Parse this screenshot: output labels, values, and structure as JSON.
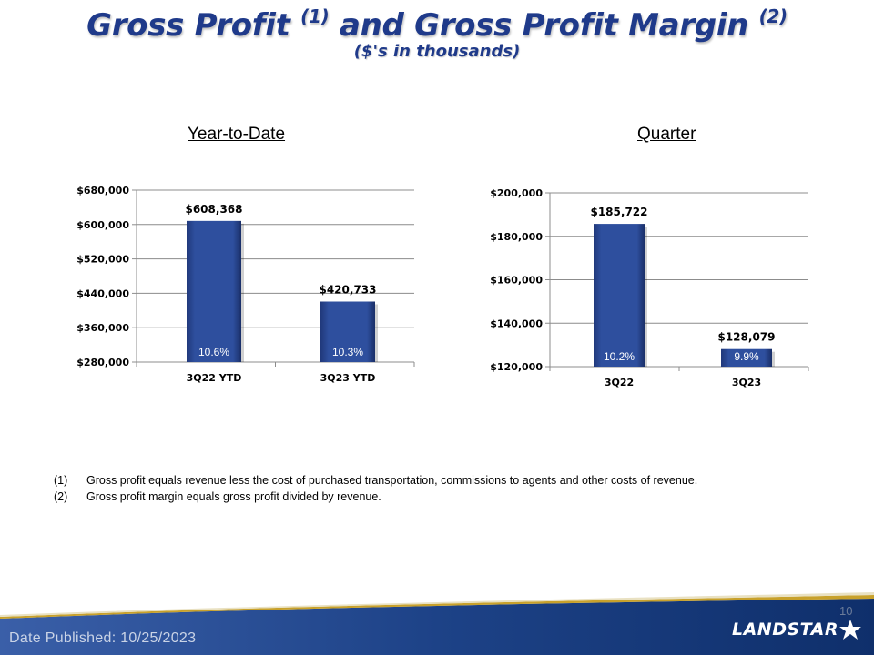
{
  "header": {
    "title_part1": "Gross Profit",
    "title_sup1": "(1)",
    "title_part2": "and Gross Profit Margin",
    "title_sup2": "(2)",
    "subtitle": "($'s in thousands)"
  },
  "sections": {
    "ytd_label": "Year-to-Date",
    "quarter_label": "Quarter"
  },
  "chart_data": [
    {
      "type": "bar",
      "categories": [
        "3Q22 YTD",
        "3Q23 YTD"
      ],
      "values": [
        608368,
        420733
      ],
      "value_labels": [
        "$608,368",
        "$420,733"
      ],
      "margin_labels": [
        "10.6%",
        "10.3%"
      ],
      "ylim": [
        280000,
        680000
      ],
      "yticks": [
        280000,
        360000,
        440000,
        520000,
        600000,
        680000
      ],
      "ytick_labels": [
        "$280,000",
        "$360,000",
        "$440,000",
        "$520,000",
        "$600,000",
        "$680,000"
      ],
      "grid": true,
      "bar_color": "#2e4f9e"
    },
    {
      "type": "bar",
      "categories": [
        "3Q22",
        "3Q23"
      ],
      "values": [
        185722,
        128079
      ],
      "value_labels": [
        "$185,722",
        "$128,079"
      ],
      "margin_labels": [
        "10.2%",
        "9.9%"
      ],
      "ylim": [
        120000,
        200000
      ],
      "yticks": [
        120000,
        140000,
        160000,
        180000,
        200000
      ],
      "ytick_labels": [
        "$120,000",
        "$140,000",
        "$160,000",
        "$180,000",
        "$200,000"
      ],
      "grid": true,
      "bar_color": "#2e4f9e"
    }
  ],
  "footnotes": [
    {
      "num": "(1)",
      "text": "Gross profit equals revenue less the cost of purchased transportation, commissions to agents and other costs of revenue."
    },
    {
      "num": "(2)",
      "text": "Gross profit margin equals gross profit divided by revenue."
    }
  ],
  "footer": {
    "date_published": "Date Published:  10/25/2023",
    "page_number": "10",
    "logo_text": "LANDSTAR"
  },
  "colors": {
    "title": "#1f3a8a",
    "bar": "#2e4f9e",
    "footer_blue": "#173a7a",
    "footer_accent": "#c8a12b"
  }
}
